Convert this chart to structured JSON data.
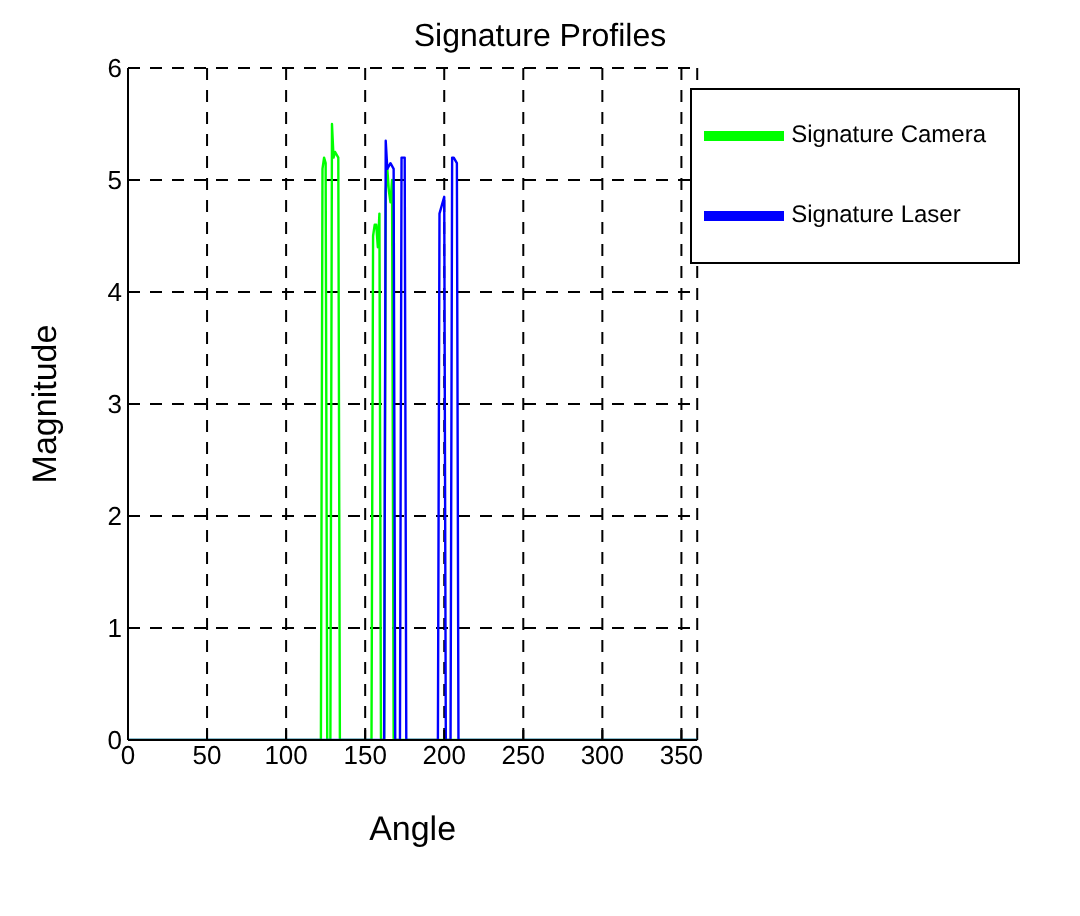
{
  "chart_data": {
    "type": "line",
    "title": "Signature Profiles",
    "xlabel": "Angle",
    "ylabel": "Magnitude",
    "xlim": [
      0,
      360
    ],
    "ylim": [
      0,
      6
    ],
    "xticks": [
      0,
      50,
      100,
      150,
      200,
      250,
      300,
      350
    ],
    "yticks": [
      0,
      1,
      2,
      3,
      4,
      5,
      6
    ],
    "grid": true,
    "legend": "top right",
    "line_style": "solid",
    "marker": "none",
    "series": [
      {
        "name": "Signature Camera",
        "color": "#00ff00",
        "x": [
          0,
          122,
          123,
          124,
          125,
          126,
          128,
          129,
          130,
          131,
          133,
          134,
          154,
          155,
          156,
          157,
          158,
          159,
          160,
          162,
          163,
          164,
          165,
          166,
          167,
          168,
          360
        ],
        "values": [
          0,
          0,
          5.1,
          5.2,
          5.15,
          0,
          0,
          5.5,
          5.2,
          5.25,
          5.2,
          0,
          0,
          4.5,
          4.6,
          4.6,
          4.4,
          4.7,
          0,
          0,
          4.9,
          5.1,
          4.9,
          4.8,
          5.0,
          0,
          0
        ]
      },
      {
        "name": "Signature Laser",
        "color": "#0000ff",
        "x": [
          0,
          162,
          163,
          164,
          166,
          168,
          169,
          172,
          173,
          175,
          176,
          196,
          197,
          199,
          200,
          201,
          204,
          205,
          206,
          208,
          209,
          360
        ],
        "values": [
          0,
          0,
          5.35,
          5.1,
          5.15,
          5.1,
          0,
          0,
          5.2,
          5.2,
          0,
          0,
          4.7,
          4.8,
          4.85,
          0,
          0,
          5.2,
          5.2,
          5.15,
          0,
          0
        ]
      }
    ]
  }
}
